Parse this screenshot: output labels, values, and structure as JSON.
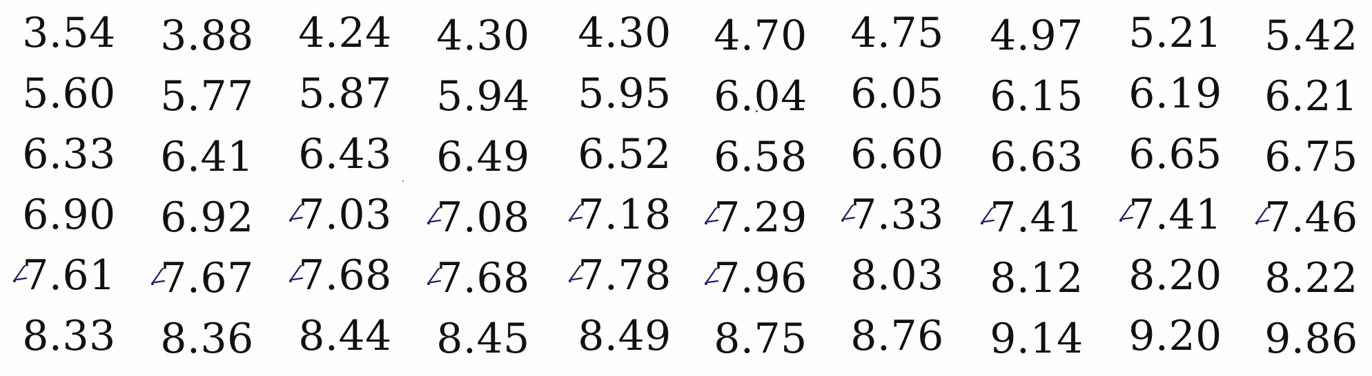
{
  "table": {
    "rows": [
      [
        "3.54",
        "3.88",
        "4.24",
        "4.30",
        "4.30",
        "4.70",
        "4.75",
        "4.97",
        "5.21",
        "5.42"
      ],
      [
        "5.60",
        "5.77",
        "5.87",
        "5.94",
        "5.95",
        "6.04",
        "6.05",
        "6.15",
        "6.19",
        "6.21"
      ],
      [
        "6.33",
        "6.41",
        "6.43",
        "6.49",
        "6.52",
        "6.58",
        "6.60",
        "6.63",
        "6.65",
        "6.75"
      ],
      [
        "6.90",
        "6.92",
        "7.03",
        "7.08",
        "7.18",
        "7.29",
        "7.33",
        "7.41",
        "7.41",
        "7.46"
      ],
      [
        "7.61",
        "7.67",
        "7.68",
        "7.68",
        "7.78",
        "7.96",
        "8.03",
        "8.12",
        "8.20",
        "8.22"
      ],
      [
        "8.33",
        "8.36",
        "8.44",
        "8.45",
        "8.49",
        "8.75",
        "8.76",
        "9.14",
        "9.20",
        "9.86"
      ]
    ],
    "handwritten_marked_cells": [
      [
        3,
        2
      ],
      [
        3,
        3
      ],
      [
        3,
        4
      ],
      [
        3,
        5
      ],
      [
        3,
        6
      ],
      [
        3,
        7
      ],
      [
        3,
        8
      ],
      [
        3,
        9
      ],
      [
        4,
        0
      ],
      [
        4,
        1
      ],
      [
        4,
        2
      ],
      [
        4,
        3
      ],
      [
        4,
        4
      ],
      [
        4,
        5
      ]
    ],
    "text_color": "#111111",
    "mark_color": "#1a1a6e"
  }
}
